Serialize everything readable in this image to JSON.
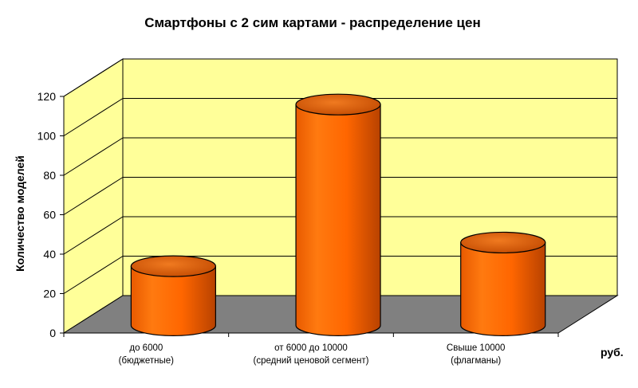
{
  "chart_data": {
    "type": "bar",
    "bar_style": "3d-cylinder",
    "title": "Смартфоны с 2 сим картами - распределение цен",
    "ylabel": "Количество моделей",
    "xlabel": "руб.",
    "categories": [
      [
        "до 6000",
        "(бюджетные)"
      ],
      [
        "от 6000 до 10000",
        "(средний ценовой сегмент)"
      ],
      [
        "Свыше 10000",
        "(флагманы)"
      ]
    ],
    "values": [
      30,
      112,
      42
    ],
    "ylim": [
      0,
      120
    ],
    "yticks": [
      "0",
      "20",
      "40",
      "60",
      "80",
      "100",
      "120"
    ],
    "grid": true,
    "legend": "none",
    "colors": {
      "wall": "#ffff99",
      "floor": "#808080",
      "bar": "#ff6600",
      "bar_dark": "#c64a00",
      "grid": "#000000"
    }
  }
}
